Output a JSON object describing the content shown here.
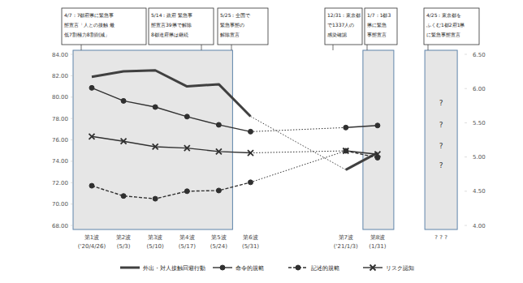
{
  "chart_data": {
    "type": "line",
    "categories": [
      "第1波\n('20/4/26)",
      "第2波\n(5/3)",
      "第3波\n(5/10)",
      "第4波\n(5/17)",
      "第5波\n(5/24)",
      "第6波\n(5/31)",
      null,
      null,
      "第7波\n('21/1/3)",
      "第8波\n(1/31)",
      null,
      "? ? ?"
    ],
    "ylim": [
      68,
      84
    ],
    "yticks": [
      {
        "value": 68,
        "label": "68.00"
      },
      {
        "value": 70,
        "label": "70.00"
      },
      {
        "value": 72,
        "label": "72.00"
      },
      {
        "value": 74,
        "label": "74.00"
      },
      {
        "value": 76,
        "label": "76.00"
      },
      {
        "value": 78,
        "label": "78.00"
      },
      {
        "value": 80,
        "label": "80.00"
      },
      {
        "value": 82,
        "label": "82.00"
      },
      {
        "value": 84,
        "label": "84.00"
      }
    ],
    "y2lim": [
      4,
      6.5
    ],
    "y2ticks": [
      {
        "value": 4,
        "label": "4.00"
      },
      {
        "value": 4.5,
        "label": "4.50"
      },
      {
        "value": 5,
        "label": "5.00"
      },
      {
        "value": 5.5,
        "label": "5.50"
      },
      {
        "value": 6,
        "label": "6.00"
      },
      {
        "value": 6.5,
        "label": "6.50"
      }
    ],
    "legend": "bottom",
    "series": [
      {
        "name": "外出・対人接触回避行動",
        "color": "#404040",
        "marker": "none",
        "line_style": "solid",
        "axis": "y",
        "values": [
          81.9,
          82.4,
          82.5,
          81.0,
          81.2,
          78.2,
          null,
          null,
          73.2,
          74.8,
          null,
          null
        ]
      },
      {
        "name": "命令的規範",
        "color": "#303030",
        "marker": "circle",
        "line_style": "solid",
        "axis": "y2",
        "values": [
          6.01,
          5.82,
          5.73,
          5.59,
          5.47,
          5.37,
          null,
          null,
          5.43,
          5.46,
          null,
          null
        ]
      },
      {
        "name": "記述的規範",
        "color": "#303030",
        "marker": "circle",
        "line_style": "dashed",
        "axis": "y2",
        "values": [
          4.58,
          4.43,
          4.39,
          4.5,
          4.51,
          4.63,
          null,
          null,
          5.09,
          4.99,
          null,
          null
        ]
      },
      {
        "name": "リスク認知",
        "color": "#303030",
        "marker": "x",
        "line_style": "solid",
        "axis": "y2",
        "values": [
          5.3,
          5.23,
          5.15,
          5.13,
          5.08,
          5.06,
          null,
          null,
          5.09,
          5.04,
          null,
          null
        ]
      }
    ],
    "annotations": [
      {
        "lines": [
          "4/7：7都府県に緊急事",
          "態宣言「人との接触 最",
          "低7割極力8割削減」"
        ]
      },
      {
        "lines": [
          "5/14：政府 緊急事",
          "態宣言39県で解除",
          "8都道府県は継続"
        ]
      },
      {
        "lines": [
          "5/25：全国で",
          "緊急事態の",
          "解除宣言"
        ]
      },
      {
        "lines": [
          "12/31：東京都",
          "で1337人の",
          "感染確認"
        ]
      },
      {
        "lines": [
          "1/7：1都3",
          "県に緊急",
          "事態宣言"
        ]
      },
      {
        "lines": [
          "4/25：東京都を",
          "ふくむ1都2府1県",
          "に緊急事態宣言"
        ]
      }
    ],
    "placeholders": [
      "?",
      "?",
      "?",
      "?"
    ]
  }
}
